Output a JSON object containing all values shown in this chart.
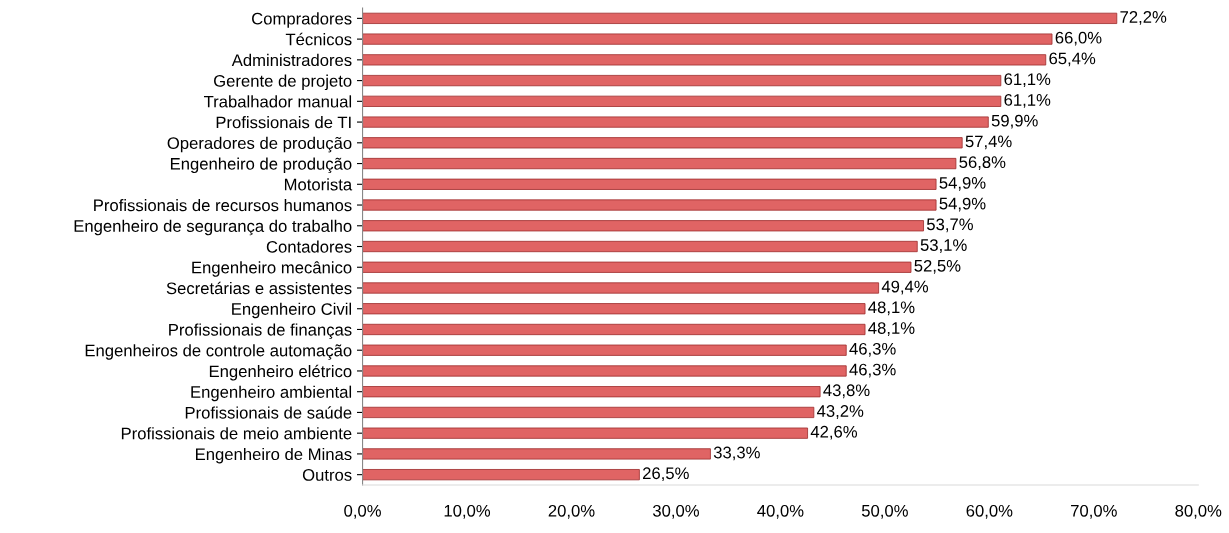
{
  "chart_data": {
    "type": "bar",
    "orientation": "horizontal",
    "categories": [
      "Compradores",
      "Técnicos",
      "Administradores",
      "Gerente de projeto",
      "Trabalhador manual",
      "Profissionais de TI",
      "Operadores de produção",
      "Engenheiro de produção",
      "Motorista",
      "Profissionais de recursos humanos",
      "Engenheiro de segurança do trabalho",
      "Contadores",
      "Engenheiro mecânico",
      "Secretárias e assistentes",
      "Engenheiro Civil",
      "Profissionais de finanças",
      "Engenheiros de controle automação",
      "Engenheiro elétrico",
      "Engenheiro ambiental",
      "Profissionais de saúde",
      "Profissionais de meio ambiente",
      "Engenheiro de Minas",
      "Outros"
    ],
    "values": [
      72.2,
      66.0,
      65.4,
      61.1,
      61.1,
      59.9,
      57.4,
      56.8,
      54.9,
      54.9,
      53.7,
      53.1,
      52.5,
      49.4,
      48.1,
      48.1,
      46.3,
      46.3,
      43.8,
      43.2,
      42.6,
      33.3,
      26.5
    ],
    "value_labels": [
      "72,2%",
      "66,0%",
      "65,4%",
      "61,1%",
      "61,1%",
      "59,9%",
      "57,4%",
      "56,8%",
      "54,9%",
      "54,9%",
      "53,7%",
      "53,1%",
      "52,5%",
      "49,4%",
      "48,1%",
      "48,1%",
      "46,3%",
      "46,3%",
      "43,8%",
      "43,2%",
      "42,6%",
      "33,3%",
      "26,5%"
    ],
    "color": "#e06464",
    "xlim": [
      0,
      80
    ],
    "xticks": [
      {
        "value": 0,
        "label": "0,0%"
      },
      {
        "value": 10,
        "label": "10,0%"
      },
      {
        "value": 20,
        "label": "20,0%"
      },
      {
        "value": 30,
        "label": "30,0%"
      },
      {
        "value": 40,
        "label": "40,0%"
      },
      {
        "value": 50,
        "label": "50,0%"
      },
      {
        "value": 60,
        "label": "60,0%"
      },
      {
        "value": 70,
        "label": "70,0%"
      },
      {
        "value": 80,
        "label": "80,0%"
      }
    ],
    "grid": false,
    "legend": false
  }
}
